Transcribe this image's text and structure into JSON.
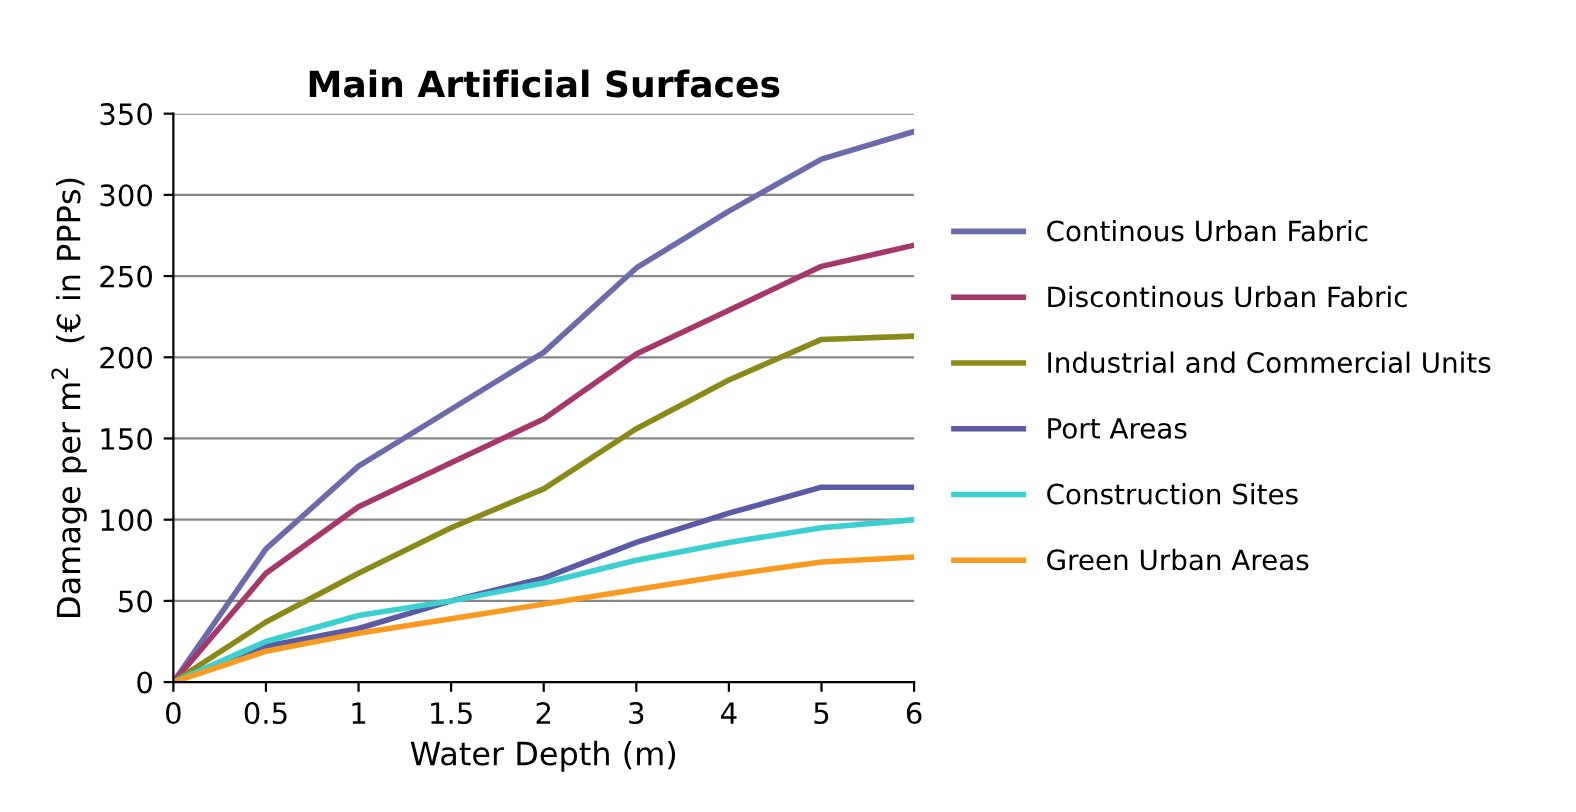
{
  "chart_data": {
    "type": "line",
    "title": "Main Artificial Surfaces",
    "xlabel": "Water Depth (m)",
    "ylabel": "Damage per m$^{2}$  (€ in PPPs)",
    "categories": [
      "0",
      "0.5",
      "1",
      "1.5",
      "2",
      "3",
      "4",
      "5",
      "6"
    ],
    "series": [
      {
        "name": "Continous Urban Fabric",
        "color": "#6b6bab",
        "values": [
          0,
          82,
          133,
          168,
          203,
          255,
          290,
          322,
          339
        ]
      },
      {
        "name": "Discontinous Urban Fabric",
        "color": "#a4386a",
        "values": [
          0,
          67,
          108,
          135,
          162,
          202,
          229,
          256,
          269
        ]
      },
      {
        "name": "Industrial and Commercial Units",
        "color": "#8a8a1a",
        "values": [
          0,
          37,
          67,
          95,
          119,
          156,
          186,
          211,
          213
        ]
      },
      {
        "name": "Port Areas",
        "color": "#5b5ba5",
        "values": [
          0,
          22,
          33,
          50,
          64,
          86,
          104,
          120,
          120
        ]
      },
      {
        "name": "Construction Sites",
        "color": "#3ccfcf",
        "values": [
          0,
          25,
          41,
          50,
          61,
          75,
          86,
          95,
          100
        ]
      },
      {
        "name": "Green Urban Areas",
        "color": "#f89a20",
        "values": [
          0,
          19,
          30,
          39,
          48,
          57,
          66,
          74,
          77
        ]
      }
    ],
    "ylim": [
      0,
      350
    ],
    "yticks": [
      0,
      50,
      100,
      150,
      200,
      250,
      300,
      350
    ],
    "grid": "y",
    "legend": "right",
    "marker": "none",
    "line_style": "solid"
  }
}
